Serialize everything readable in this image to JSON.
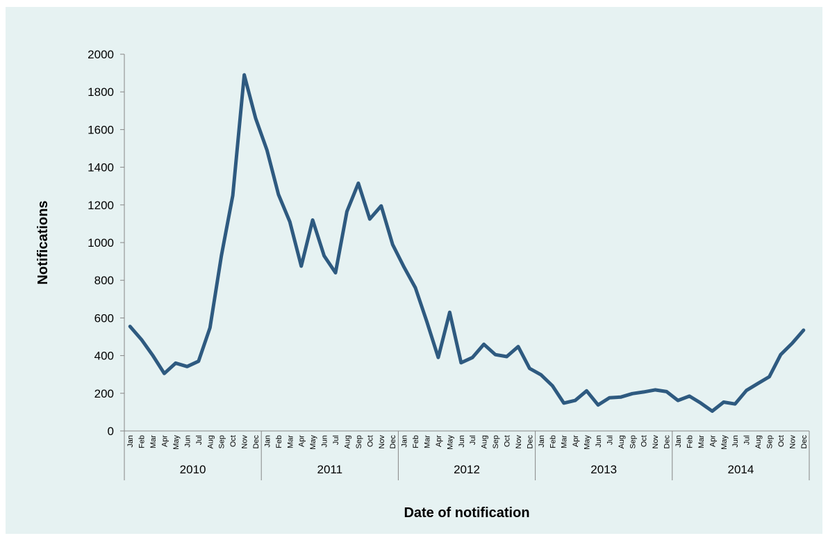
{
  "chart_data": {
    "type": "line",
    "title": "",
    "xlabel": "Date of notification",
    "ylabel": "Notifications",
    "ylim": [
      0,
      2000
    ],
    "yticks": [
      0,
      200,
      400,
      600,
      800,
      1000,
      1200,
      1400,
      1600,
      1800,
      2000
    ],
    "grid": false,
    "legend": "none",
    "line_color": "#2e5a80",
    "background_color": "#e6f2f2",
    "years": [
      "2010",
      "2011",
      "2012",
      "2013",
      "2014"
    ],
    "months": [
      "Jan",
      "Feb",
      "Mar",
      "Apr",
      "May",
      "Jun",
      "Jul",
      "Aug",
      "Sep",
      "Oct",
      "Nov",
      "Dec"
    ],
    "series": [
      {
        "values": [
          555,
          485,
          400,
          305,
          360,
          342,
          370,
          548,
          930,
          1250,
          1890,
          1660,
          1490,
          1255,
          1110,
          875,
          1120,
          930,
          840,
          1165,
          1315,
          1125,
          1195,
          990,
          870,
          760,
          580,
          390,
          630,
          362,
          390,
          460,
          405,
          395,
          448,
          332,
          298,
          240,
          148,
          162,
          213,
          138,
          176,
          180,
          198,
          207,
          218,
          209,
          162,
          185,
          148,
          105,
          153,
          143,
          215,
          252,
          288,
          405,
          465,
          535
        ]
      }
    ]
  }
}
